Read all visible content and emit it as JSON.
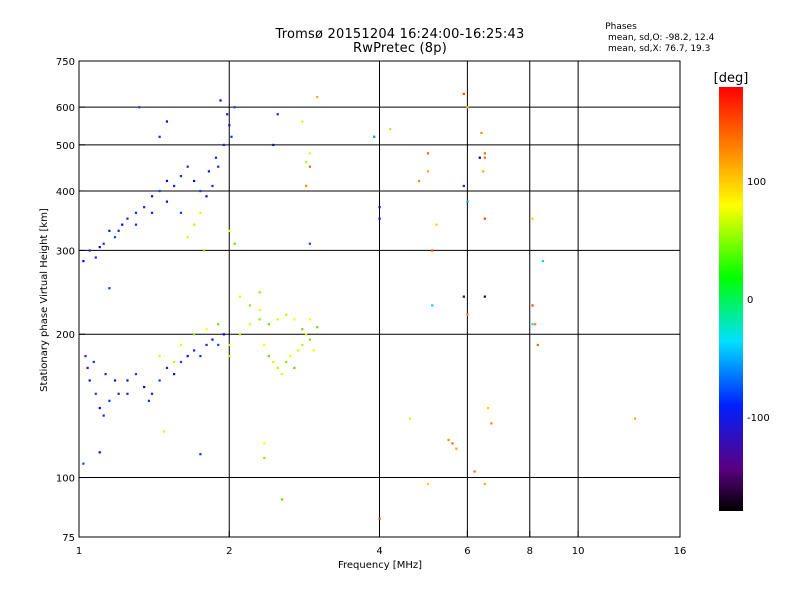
{
  "header": {
    "title": "Tromsø 20151204 16:24:00-16:25:43",
    "subtitle": "RwPretec (8p)",
    "stats_title": "Phases",
    "stats_o": "mean, sd,O: -98.2, 12.4",
    "stats_x": "mean, sd,X: 76.7, 19.3"
  },
  "chart_data": {
    "type": "scatter",
    "xlabel": "Frequency [MHz]",
    "ylabel": "Stationary phase Virtual Height [km]",
    "xscale": "log",
    "yscale": "log",
    "xlim": [
      1,
      16
    ],
    "ylim": [
      75,
      750
    ],
    "x_ticks": [
      1,
      2,
      4,
      6,
      8,
      10,
      16
    ],
    "y_ticks": [
      75,
      100,
      200,
      300,
      400,
      500,
      600,
      750
    ],
    "x_grid": [
      2,
      4,
      6,
      8,
      10
    ],
    "y_grid": [
      100,
      200,
      300,
      400,
      500,
      600
    ],
    "colorbar": {
      "label": "[deg]",
      "min": -180,
      "max": 180,
      "ticks": [
        100,
        0,
        -100
      ]
    },
    "series": [
      {
        "points": [
          [
            1.02,
            285
          ],
          [
            1.05,
            300
          ],
          [
            1.08,
            290
          ],
          [
            1.12,
            310
          ],
          [
            1.15,
            330
          ],
          [
            1.18,
            320
          ],
          [
            1.22,
            340
          ],
          [
            1.25,
            350
          ],
          [
            1.3,
            360
          ],
          [
            1.35,
            370
          ],
          [
            1.4,
            390
          ],
          [
            1.45,
            400
          ],
          [
            1.5,
            420
          ],
          [
            1.55,
            410
          ],
          [
            1.6,
            430
          ],
          [
            1.65,
            450
          ],
          [
            1.7,
            420
          ],
          [
            1.75,
            400
          ],
          [
            1.8,
            390
          ],
          [
            1.85,
            410
          ],
          [
            1.9,
            450
          ],
          [
            1.95,
            500
          ],
          [
            2.0,
            550
          ],
          [
            2.05,
            600
          ],
          [
            1.92,
            620
          ],
          [
            1.98,
            580
          ],
          [
            2.02,
            520
          ],
          [
            1.88,
            470
          ],
          [
            1.82,
            440
          ],
          [
            1.6,
            360
          ],
          [
            1.5,
            380
          ],
          [
            1.4,
            360
          ],
          [
            1.3,
            340
          ],
          [
            1.2,
            330
          ],
          [
            1.1,
            305
          ],
          [
            1.32,
            600
          ],
          [
            1.5,
            560
          ],
          [
            1.45,
            520
          ],
          [
            1.15,
            250
          ],
          [
            1.03,
            180
          ],
          [
            1.05,
            160
          ],
          [
            1.08,
            150
          ],
          [
            1.1,
            140
          ],
          [
            1.12,
            135
          ],
          [
            1.15,
            145
          ],
          [
            1.2,
            150
          ],
          [
            1.25,
            160
          ],
          [
            1.3,
            165
          ],
          [
            1.35,
            155
          ],
          [
            1.4,
            150
          ],
          [
            1.45,
            160
          ],
          [
            1.5,
            170
          ],
          [
            1.55,
            165
          ],
          [
            1.6,
            175
          ],
          [
            1.65,
            180
          ],
          [
            1.7,
            185
          ],
          [
            1.75,
            180
          ],
          [
            1.8,
            190
          ],
          [
            1.85,
            195
          ],
          [
            1.9,
            190
          ],
          [
            1.95,
            200
          ],
          [
            1.04,
            170
          ],
          [
            1.07,
            175
          ],
          [
            1.13,
            165
          ],
          [
            1.18,
            160
          ],
          [
            1.02,
            107
          ],
          [
            1.1,
            113
          ],
          [
            1.25,
            150
          ],
          [
            1.38,
            145
          ],
          [
            2.5,
            580
          ],
          [
            2.45,
            500
          ],
          [
            2.9,
            310
          ],
          [
            4.0,
            350
          ],
          [
            5.9,
            410
          ],
          [
            1.75,
            112
          ]
        ],
        "colors": "blue"
      },
      {
        "points": [
          [
            1.45,
            180
          ],
          [
            1.55,
            175
          ],
          [
            1.6,
            190
          ],
          [
            1.7,
            200
          ],
          [
            1.8,
            205
          ],
          [
            1.9,
            210
          ],
          [
            2.0,
            190
          ],
          [
            2.1,
            200
          ],
          [
            2.2,
            210
          ],
          [
            2.3,
            215
          ],
          [
            2.35,
            190
          ],
          [
            2.4,
            180
          ],
          [
            2.45,
            175
          ],
          [
            2.5,
            170
          ],
          [
            2.55,
            165
          ],
          [
            2.6,
            175
          ],
          [
            2.65,
            180
          ],
          [
            2.7,
            170
          ],
          [
            2.75,
            185
          ],
          [
            2.8,
            190
          ],
          [
            2.85,
            200
          ],
          [
            2.9,
            195
          ],
          [
            2.95,
            185
          ],
          [
            2.4,
            210
          ],
          [
            2.5,
            215
          ],
          [
            2.6,
            220
          ],
          [
            2.3,
            225
          ],
          [
            2.2,
            230
          ],
          [
            2.7,
            215
          ],
          [
            2.8,
            205
          ],
          [
            1.65,
            320
          ],
          [
            1.7,
            340
          ],
          [
            1.75,
            360
          ],
          [
            1.78,
            300
          ],
          [
            2.0,
            330
          ],
          [
            2.05,
            310
          ],
          [
            2.8,
            560
          ],
          [
            2.85,
            460
          ],
          [
            2.9,
            480
          ],
          [
            2.35,
            110
          ],
          [
            2.35,
            118
          ],
          [
            2.55,
            90
          ],
          [
            1.48,
            125
          ],
          [
            2.0,
            180
          ],
          [
            2.1,
            240
          ],
          [
            2.3,
            245
          ],
          [
            2.9,
            215
          ],
          [
            3.0,
            207
          ],
          [
            4.6,
            133
          ]
        ],
        "colors": "green-yellow"
      },
      {
        "points": [
          [
            2.85,
            410
          ],
          [
            2.9,
            450
          ],
          [
            3.0,
            630
          ],
          [
            3.9,
            520
          ],
          [
            4.2,
            540
          ],
          [
            4.8,
            420
          ],
          [
            5.0,
            480
          ],
          [
            5.0,
            440
          ],
          [
            5.1,
            300
          ],
          [
            5.2,
            340
          ],
          [
            5.5,
            120
          ],
          [
            5.6,
            118
          ],
          [
            5.7,
            115
          ],
          [
            5.9,
            640
          ],
          [
            6.0,
            600
          ],
          [
            6.4,
            530
          ],
          [
            6.5,
            470
          ],
          [
            6.45,
            440
          ],
          [
            6.5,
            350
          ],
          [
            6.6,
            140
          ],
          [
            6.7,
            130
          ],
          [
            6.2,
            103
          ],
          [
            6.5,
            97
          ],
          [
            8.1,
            230
          ],
          [
            8.1,
            350
          ],
          [
            8.2,
            210
          ],
          [
            8.3,
            190
          ],
          [
            13.0,
            133
          ],
          [
            4.0,
            82
          ],
          [
            5.0,
            97
          ],
          [
            6.0,
            220
          ],
          [
            6.5,
            480
          ]
        ],
        "colors": "orange-red"
      },
      {
        "points": [
          [
            5.1,
            230
          ],
          [
            5.9,
            240
          ],
          [
            6.0,
            380
          ],
          [
            6.5,
            240
          ],
          [
            8.1,
            210
          ],
          [
            8.5,
            285
          ],
          [
            4.0,
            370
          ],
          [
            3.9,
            520
          ],
          [
            6.35,
            470
          ]
        ],
        "colors": "mixed"
      }
    ]
  }
}
